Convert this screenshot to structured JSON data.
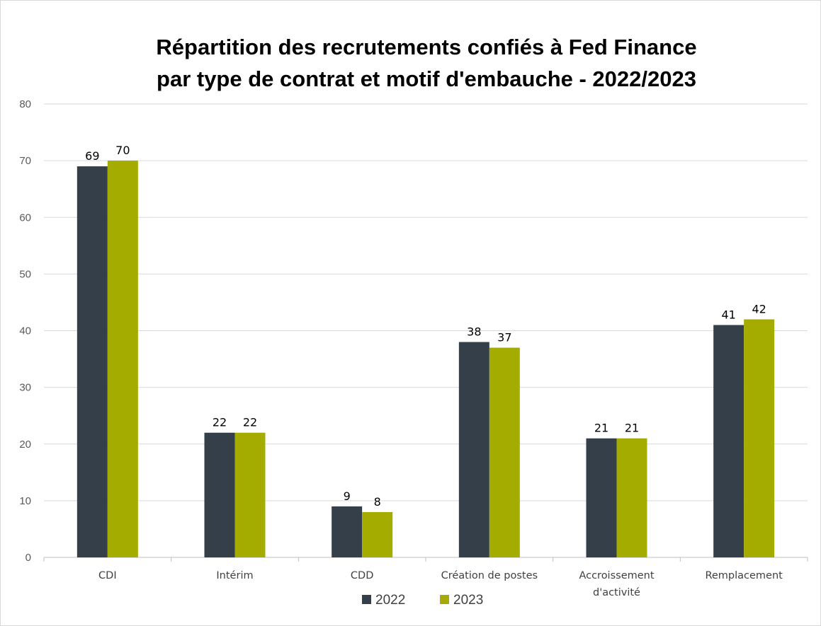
{
  "chart_data": {
    "type": "bar",
    "title_lines": [
      "Répartition des recrutements confiés à Fed Finance",
      "par type de contrat et motif d'embauche - 2022/2023"
    ],
    "categories": [
      [
        "CDI"
      ],
      [
        "Intérim"
      ],
      [
        "CDD"
      ],
      [
        "Création de postes"
      ],
      [
        "Accroissement",
        "d'activité"
      ],
      [
        "Remplacement"
      ]
    ],
    "series": [
      {
        "name": "2022",
        "color": "#343f49",
        "values": [
          69,
          22,
          9,
          38,
          21,
          41
        ]
      },
      {
        "name": "2023",
        "color": "#a4ac00",
        "values": [
          70,
          22,
          8,
          37,
          21,
          42
        ]
      }
    ],
    "ylim": [
      0,
      80
    ],
    "yticks": [
      "0",
      "10",
      "20",
      "30",
      "40",
      "50",
      "60",
      "70",
      "80"
    ],
    "grid": true,
    "legend_position": "bottom",
    "gridline_color": "#d9d9d9"
  }
}
